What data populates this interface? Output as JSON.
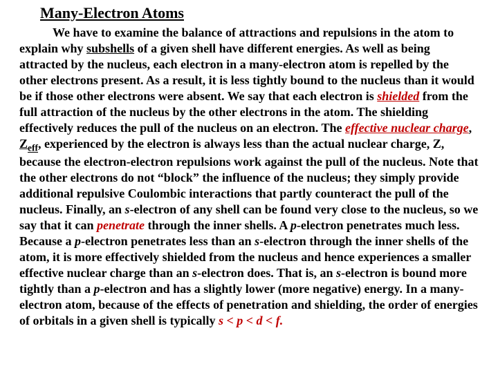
{
  "title": "Many-Electron Atoms",
  "p": {
    "t1": "We have to examine the balance of attractions and repulsions in the atom to explain why ",
    "subshells": "subshells",
    "t2": " of a given shell have different energies.  As well as being attracted by the nucleus, each electron in a many-electron atom is repelled by the other electrons present.  As a result, it is less tightly bound to the nucleus than it would be if those other electrons were absent.  We say that each electron is ",
    "shielded": "shielded",
    "t3": " from the full attraction of the nucleus by the other electrons in the atom.  The shielding effectively reduces the pull of the nucleus on an electron.  The ",
    "enc": "effective nuclear charge",
    "comma1": ", ",
    "z": "Z",
    "eff": "eff",
    "comma2": ",",
    "t4": " experienced by the electron is always less than the actual nuclear charge, Z, because the electron-electron repulsions work against the pull of the nucleus.  Note that the other electrons do not “block” the influence of the nucleus; they simply provide additional repulsive Coulombic interactions that partly counteract the pull of the nucleus.  Finally, an ",
    "s1": "s",
    "t5": "-electron of any shell can be found very close to the nucleus, so we say that it can ",
    "penetrate": "penetrate",
    "t6": " through the inner shells.  A ",
    "p1": "p",
    "t7": "-electron penetrates much less.  Because a ",
    "p2": "p",
    "t8": "-electron penetrates less than an ",
    "s2": "s",
    "t9": "-electron through the inner shells of the atom, it is more effectively shielded from the nucleus and hence experiences a smaller effective nuclear charge than an ",
    "s3": "s",
    "t10": "-electron does.  That is, an ",
    "s4": "s",
    "t11": "-electron is bound more tightly than a ",
    "p3": "p",
    "t12": "-electron and has a slightly lower (more negative) energy.  In a many-electron atom, because of the effects of penetration and shielding, the order of energies of orbitals in a given shell is typically ",
    "order": "s < p < d < f."
  }
}
